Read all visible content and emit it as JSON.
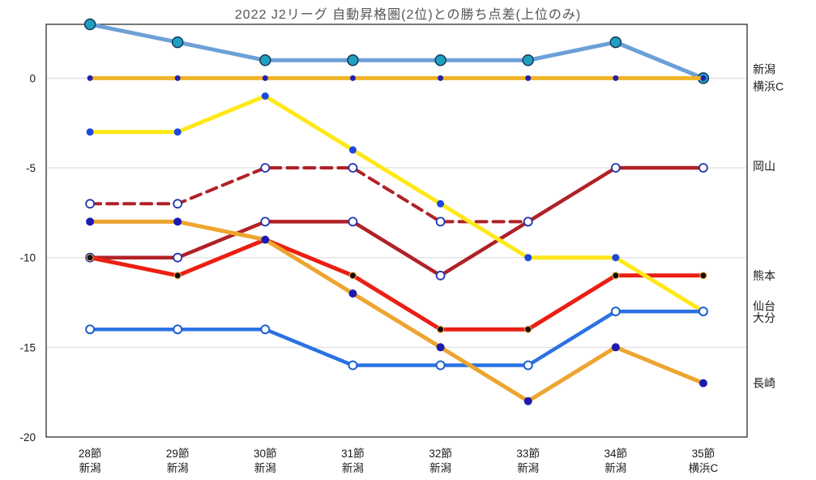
{
  "title": "2022 J2リーグ 自動昇格圏(2位)との勝ち点差(上位のみ)",
  "chart_data": {
    "type": "line",
    "title": "2022 J2リーグ 自動昇格圏(2位)との勝ち点差(上位のみ)",
    "xlabel": "",
    "ylabel": "",
    "ylim": [
      -20,
      3
    ],
    "yticks": [
      0,
      -5,
      -10,
      -15,
      -20
    ],
    "grid": "horizontal",
    "grid_color": "#d9d9d9",
    "border_color": "#1f1f1f",
    "legend_position": "right-labels",
    "categories": [
      "28節",
      "29節",
      "30節",
      "31節",
      "32節",
      "33節",
      "34節",
      "35節"
    ],
    "category_sublabels": [
      "新潟",
      "新潟",
      "新潟",
      "新潟",
      "新潟",
      "新潟",
      "新潟",
      "横浜C"
    ],
    "series": [
      {
        "id": "niigata",
        "name": "新潟",
        "color": "#6CA0D6",
        "width": 5,
        "dash": "",
        "marker": {
          "type": "circle",
          "r": 6.5,
          "fill": "#1FA0C0",
          "stroke": "#17375E",
          "stroke_width": 1.5
        },
        "values": [
          3,
          2,
          1,
          1,
          1,
          1,
          2,
          0
        ]
      },
      {
        "id": "yokohama-fc",
        "name": "横浜C",
        "color": "#F0B429",
        "width": 5,
        "dash": "",
        "marker": {
          "type": "circle",
          "r": 3.5,
          "fill": "#2121B0",
          "stroke": "",
          "stroke_width": 0
        },
        "values": [
          0,
          0,
          0,
          0,
          0,
          0,
          0,
          0
        ]
      },
      {
        "id": "okayama-dashed",
        "name": "岡山(破線)",
        "color": "#B02126",
        "width": 4,
        "dash": "13 8",
        "marker": {
          "type": "circle",
          "r": 5,
          "fill": "#FFFFFF",
          "stroke": "#2233AE",
          "stroke_width": 1.8
        },
        "values": [
          -7,
          -7,
          -5,
          -5,
          -8,
          -8,
          null,
          null
        ]
      },
      {
        "id": "okayama",
        "name": "岡山",
        "color": "#B02126",
        "width": 4.5,
        "dash": "",
        "marker": {
          "type": "circle",
          "r": 5,
          "fill": "#FFFFFF",
          "stroke": "#2233AE",
          "stroke_width": 1.8
        },
        "values": [
          -10,
          -10,
          -8,
          -8,
          -11,
          -8,
          -5,
          -5
        ]
      },
      {
        "id": "kumamoto",
        "name": "熊本",
        "color": "#EB1F14",
        "width": 5,
        "dash": "",
        "marker": {
          "type": "circle",
          "r": 4,
          "fill": "#0D0D0D",
          "stroke": "#E8A33D",
          "stroke_width": 1.2
        },
        "values": [
          -10,
          -11,
          -9,
          -11,
          -14,
          -14,
          -11,
          -11
        ]
      },
      {
        "id": "sendai",
        "name": "仙台",
        "color": "#FFE819",
        "width": 5,
        "dash": "",
        "marker": {
          "type": "circle",
          "r": 4.5,
          "fill": "#1C48E0",
          "stroke": "",
          "stroke_width": 0
        },
        "values": [
          -3,
          -3,
          -1,
          -4,
          -7,
          -10,
          -10,
          -13
        ]
      },
      {
        "id": "oita",
        "name": "大分",
        "color": "#2B71E4",
        "width": 4.5,
        "dash": "",
        "marker": {
          "type": "circle",
          "r": 5,
          "fill": "#FFFFFF",
          "stroke": "#1E5FD0",
          "stroke_width": 2
        },
        "values": [
          -14,
          -14,
          -14,
          -16,
          -16,
          -16,
          -13,
          -13
        ]
      },
      {
        "id": "nagasaki",
        "name": "長崎",
        "color": "#EDA52F",
        "width": 5,
        "dash": "",
        "marker": {
          "type": "circle",
          "r": 5,
          "fill": "#1B1BB0",
          "stroke": "",
          "stroke_width": 0
        },
        "values": [
          -8,
          -8,
          -9,
          -12,
          -15,
          -18,
          -15,
          -17
        ]
      }
    ],
    "right_labels": [
      {
        "text": "新潟",
        "value": 0.5
      },
      {
        "text": "横浜C",
        "value": -0.45
      },
      {
        "text": "岡山",
        "value": -4.9
      },
      {
        "text": "熊本",
        "value": -11.0
      },
      {
        "text": "仙台",
        "value": -12.7
      },
      {
        "text": "大分",
        "value": -13.35
      },
      {
        "text": "長崎",
        "value": -17.0
      }
    ]
  }
}
